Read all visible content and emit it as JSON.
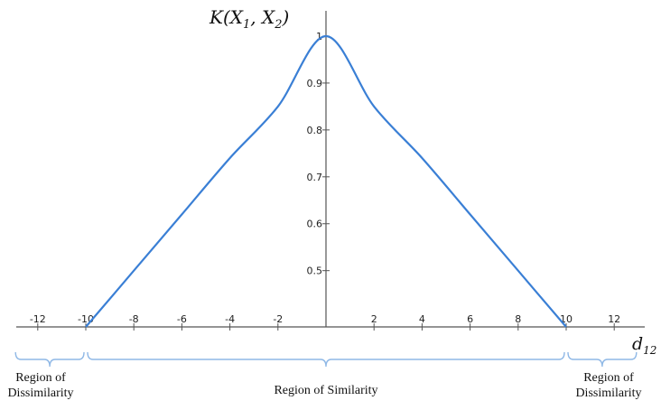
{
  "chart_data": {
    "type": "line",
    "title": "",
    "xlabel": "d_12",
    "xlabel_main": "d",
    "xlabel_sub": "12",
    "ylabel": "K(X_1, X_2)",
    "ylabel_parts": {
      "lead": "K(X",
      "sub1": "1",
      "mid": ", X",
      "sub2": "2",
      "tail": ")"
    },
    "xlim": [
      -13,
      13
    ],
    "ylim": [
      0.38,
      1.04
    ],
    "axis_origin_y": 0.38,
    "x_ticks": [
      {
        "value": -12,
        "label": "-12"
      },
      {
        "value": -10,
        "label": "-10"
      },
      {
        "value": -8,
        "label": "-8"
      },
      {
        "value": -6,
        "label": "-6"
      },
      {
        "value": -4,
        "label": "-4"
      },
      {
        "value": -2,
        "label": "-2"
      },
      {
        "value": 2,
        "label": "2"
      },
      {
        "value": 4,
        "label": "4"
      },
      {
        "value": 6,
        "label": "6"
      },
      {
        "value": 8,
        "label": "8"
      },
      {
        "value": 10,
        "label": "10"
      },
      {
        "value": 12,
        "label": "12"
      }
    ],
    "y_ticks": [
      {
        "value": 0.5,
        "label": "0.5"
      },
      {
        "value": 0.6,
        "label": "0.6"
      },
      {
        "value": 0.7,
        "label": "0.7"
      },
      {
        "value": 0.8,
        "label": "0.8"
      },
      {
        "value": 0.9,
        "label": "0.9"
      },
      {
        "value": 1,
        "label": "1"
      }
    ],
    "series": [
      {
        "color": "#3a7fd5",
        "points": [
          [
            -10,
            0.38
          ],
          [
            -8,
            0.5
          ],
          [
            -6,
            0.62
          ],
          [
            -4,
            0.74
          ],
          [
            -2,
            0.85
          ],
          [
            0,
            1.0
          ],
          [
            2,
            0.85
          ],
          [
            4,
            0.74
          ],
          [
            6,
            0.62
          ],
          [
            8,
            0.5
          ],
          [
            10,
            0.38
          ]
        ]
      }
    ],
    "grid": false,
    "regions": [
      {
        "from": -13,
        "to": -10,
        "lines": [
          "Region of",
          "Dissimilarity"
        ]
      },
      {
        "from": -10,
        "to": 10,
        "lines": [
          "Region of Similarity"
        ]
      },
      {
        "from": 10,
        "to": 13,
        "lines": [
          "Region of",
          "Dissimilarity"
        ]
      }
    ],
    "colors": {
      "curve": "#3a7fd5",
      "brace": "#8fb8e6",
      "axis": "#555555"
    }
  }
}
